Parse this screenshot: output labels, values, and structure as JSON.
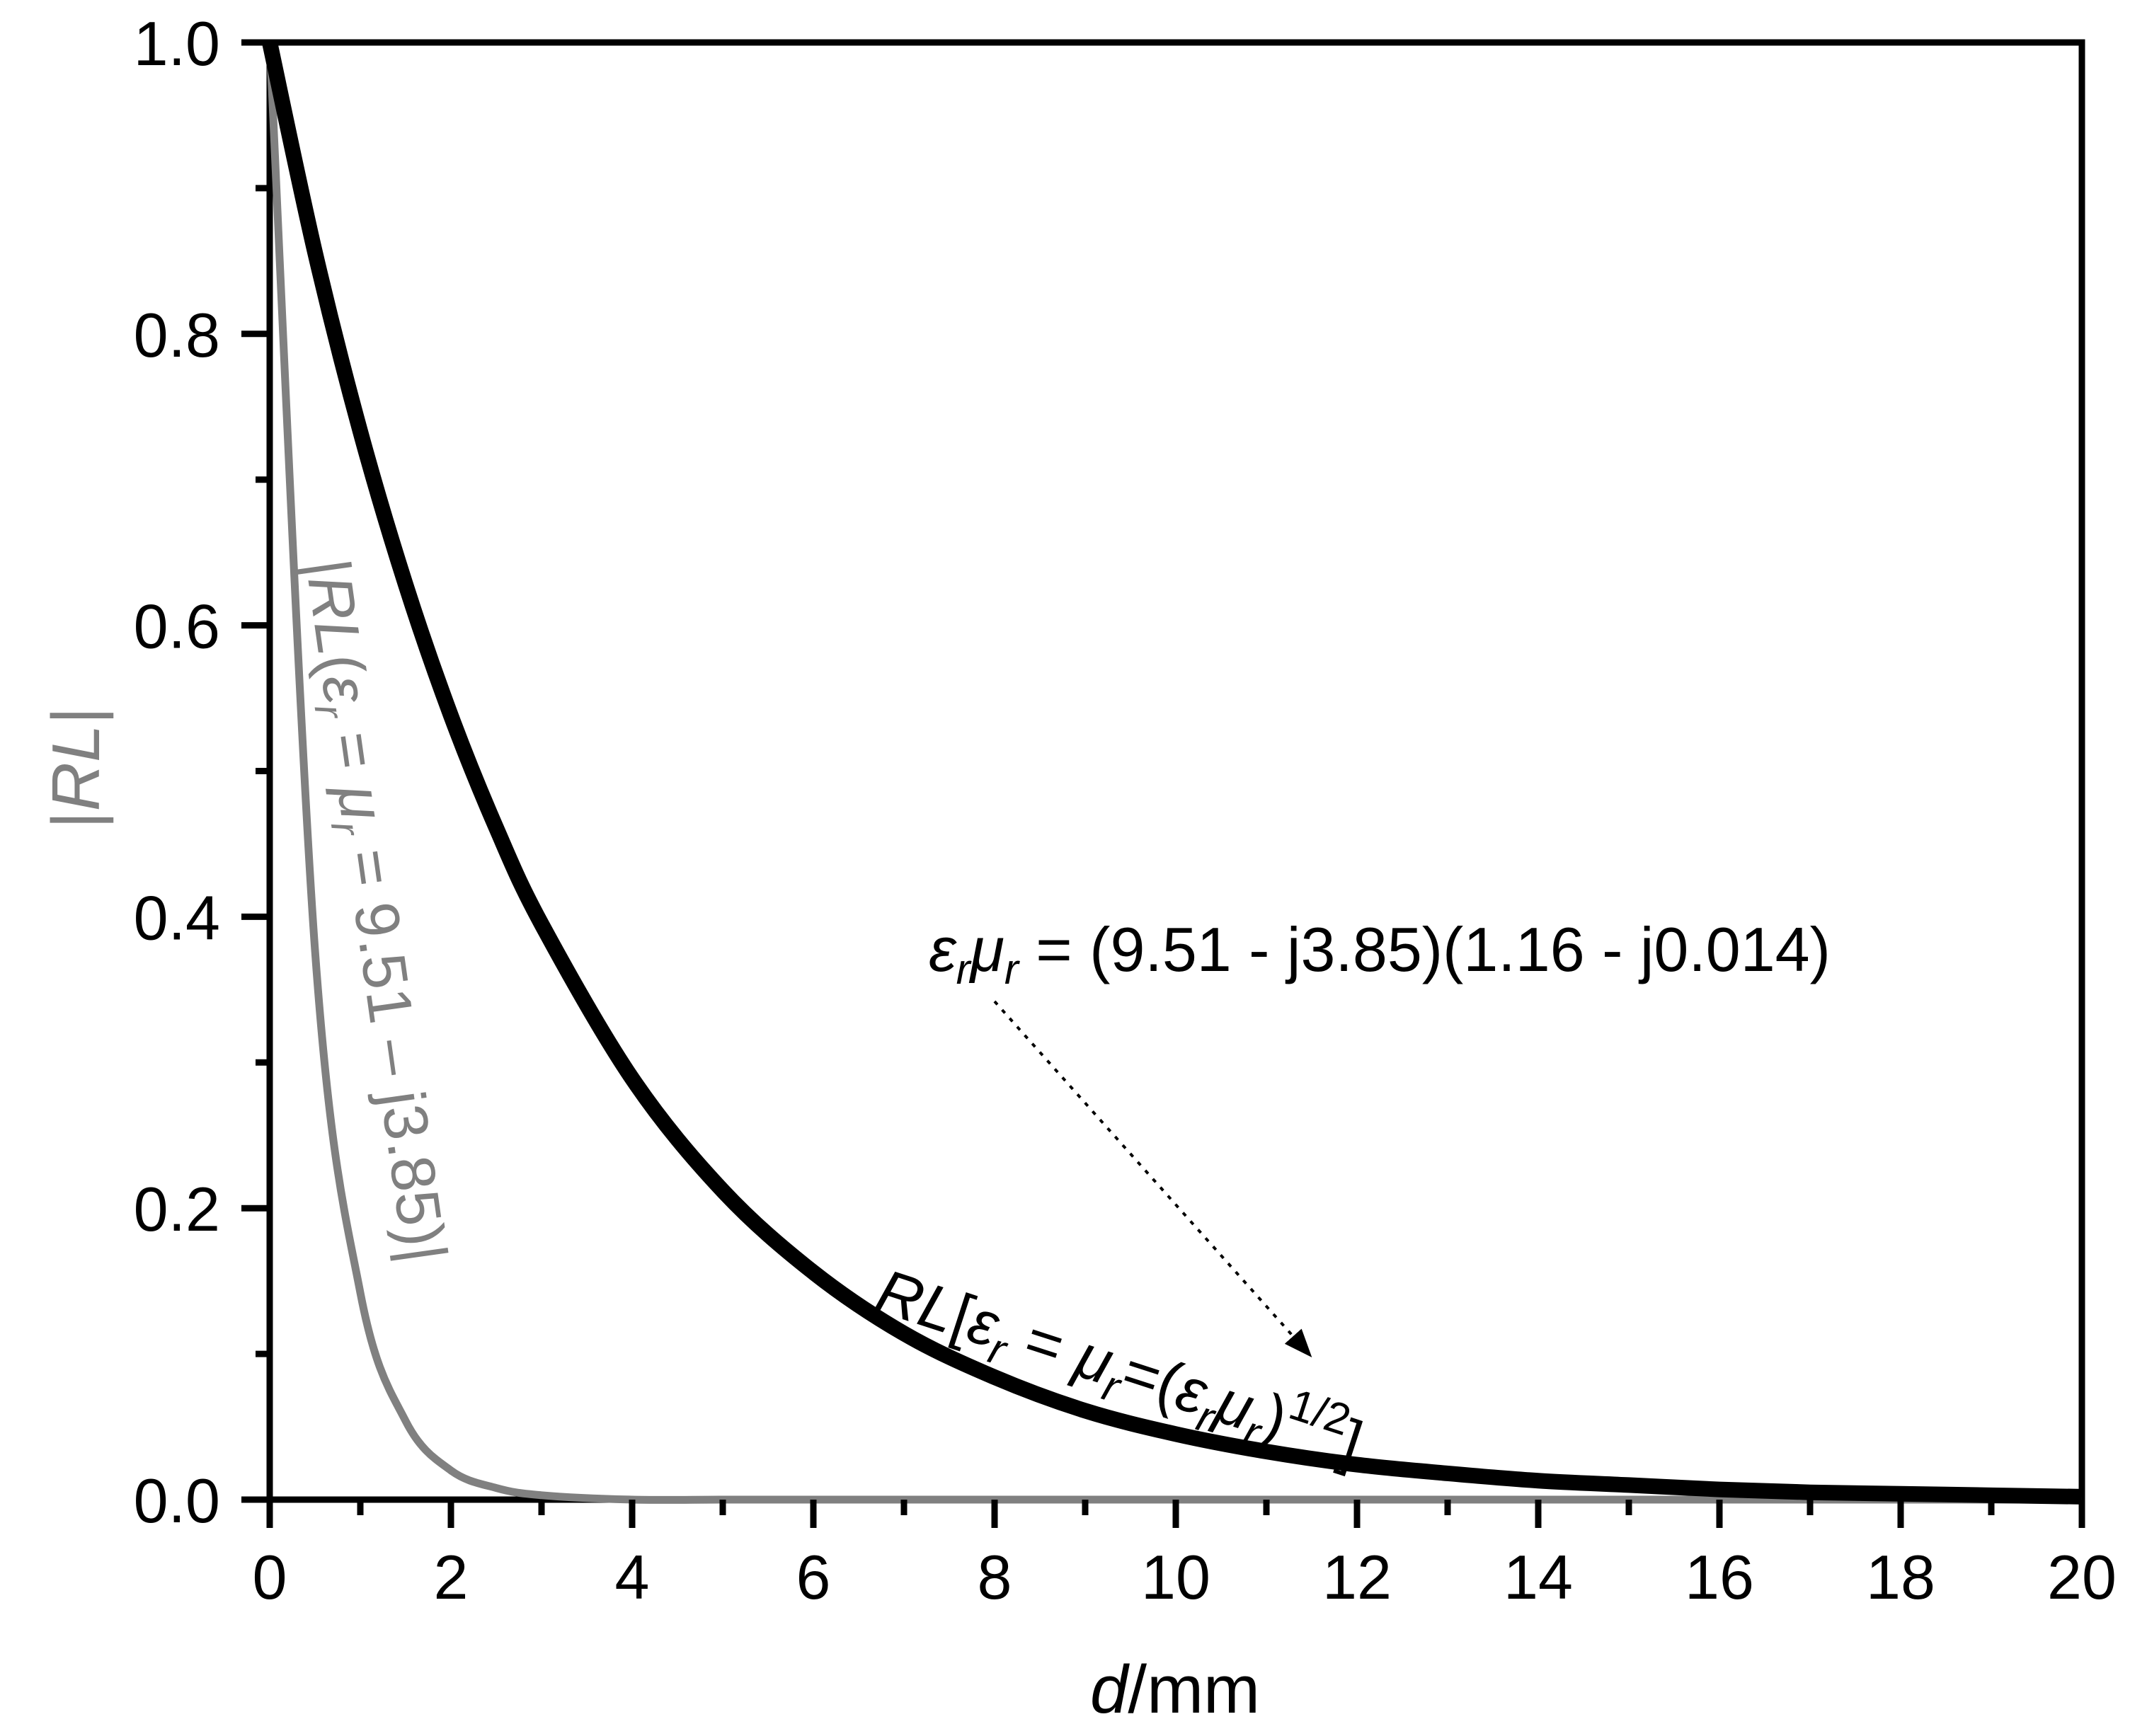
{
  "chart_data": {
    "type": "line",
    "title": "",
    "xlabel": "d/mm",
    "ylabel": "|RL|",
    "xlim": [
      0,
      20
    ],
    "ylim": [
      0.0,
      1.0
    ],
    "x_ticks": [
      "0",
      "2",
      "4",
      "6",
      "8",
      "10",
      "12",
      "14",
      "16",
      "18",
      "20"
    ],
    "y_ticks": [
      "0.0",
      "0.2",
      "0.4",
      "0.6",
      "0.8",
      "1.0"
    ],
    "grid": false,
    "legend": "none (inline curve labels)",
    "x": [
      0,
      0.5,
      1,
      1.5,
      2,
      2.5,
      3,
      4,
      5,
      6,
      7,
      8,
      9,
      10,
      11,
      12,
      13,
      14,
      15,
      16,
      17,
      18,
      19,
      20
    ],
    "series": [
      {
        "name": "RL[εr = μr = (εrμr)^1/2]",
        "color": "#000000",
        "values": [
          1.0,
          0.856,
          0.733,
          0.628,
          0.538,
          0.461,
          0.395,
          0.289,
          0.212,
          0.156,
          0.114,
          0.084,
          0.061,
          0.045,
          0.033,
          0.024,
          0.018,
          0.013,
          0.01,
          0.007,
          0.005,
          0.004,
          0.003,
          0.002
        ]
      },
      {
        "name": "|RL(εr = μr = 9.51 – j3.85)|",
        "color": "#808080",
        "values": [
          1.0,
          0.377,
          0.142,
          0.054,
          0.02,
          0.008,
          0.003,
          0.0,
          0.0,
          0.0,
          0.0,
          0.0,
          0.0,
          0.0,
          0.0,
          0.0,
          0.0,
          0.0,
          0.0,
          0.0,
          0.0,
          0.0,
          0.0,
          0.0
        ]
      }
    ],
    "annotations": [
      "εrμr = (9.51 -  j3.85)(1.16 - j0.014)",
      "RL[εr = μr=(εrμr)1/2]",
      "|RL(εr = μr = 9.51 – j3.85)|"
    ]
  },
  "labels": {
    "xlabel_var": "d",
    "xlabel_unit": "/mm",
    "ylabel_bar_left": "|",
    "ylabel_var": "RL",
    "ylabel_bar_right": "|",
    "annot_product": {
      "eps": "ε",
      "sub_r1": "r",
      "mu": "μ",
      "sub_r2": "r",
      "rest": " = (9.51 -  j3.85)(1.16 - j0.014)"
    },
    "black_label": {
      "rl": "RL",
      "bracket_open": "[",
      "eps": "ε",
      "sub1": "r",
      "eq1": " = ",
      "mu": "μ",
      "sub2": "r",
      "eq2": "=(",
      "eps2": "ε",
      "sub3": "r",
      "mu2": "μ",
      "sub4": "r",
      "close": ")",
      "power": "1/2",
      "bracket_close": "]"
    },
    "gray_label": {
      "open": "|",
      "rl": "RL",
      "paren": "(",
      "eps": "ε",
      "sub1": "r",
      "eq1": " = ",
      "mu": "μ",
      "sub2": "r",
      "rest": " = 9.51 – j3.85)|"
    }
  }
}
